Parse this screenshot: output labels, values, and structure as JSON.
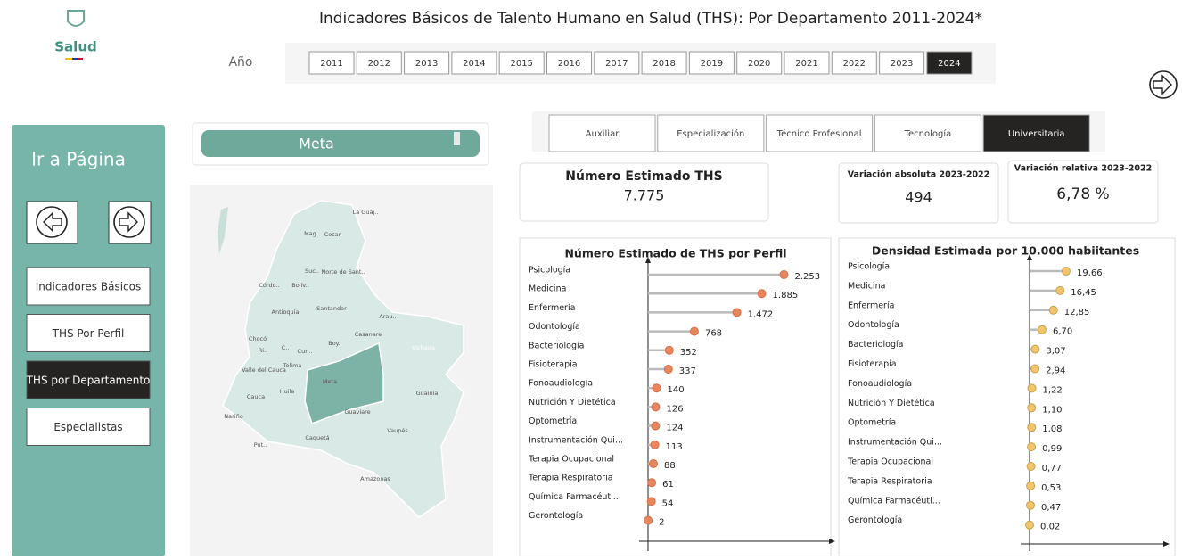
{
  "header": {
    "logo": "Salud",
    "title": "Indicadores Básicos de Talento Humano en Salud (THS): Por Departamento 2011-2024*",
    "year_label": "Año",
    "years": [
      "2011",
      "2012",
      "2013",
      "2014",
      "2015",
      "2016",
      "2017",
      "2018",
      "2019",
      "2020",
      "2021",
      "2022",
      "2023",
      "2024"
    ],
    "selected": "2024"
  },
  "nav": {
    "title": "Ir a Página",
    "pages": [
      "Indicadores Básicos",
      "THS Por Perfil",
      "THS por Departamento",
      "Especialistas"
    ],
    "current": "THS por Departamento"
  },
  "slicer": {
    "label": "Meta"
  },
  "map": {
    "regions": [
      "La Guaj..",
      "Mag..",
      "Cesar",
      "Norte de Sant..",
      "Suc..",
      "Córdo..",
      "Bolív..",
      "Antioquia",
      "Santander",
      "Arau..",
      "Chocó",
      "Ri..",
      "C..",
      "Cun..",
      "Boy..",
      "Casanare",
      "Vichada",
      "Valle del Cauca",
      "Tolima",
      "Meta",
      "Cauca",
      "Huila",
      "Guainía",
      "Guaviare",
      "Nariño",
      "Vaupés",
      "Caquetá",
      "Put..",
      "Amazonas"
    ]
  },
  "tabs": {
    "items": [
      "Auxiliar",
      "Especialización",
      "Técnico Profesional",
      "Tecnología",
      "Universitaria"
    ],
    "selected": "Universitaria"
  },
  "kpis": [
    {
      "title": "Número Estimado THS",
      "value": "7.775"
    },
    {
      "title": "Variación absoluta 2023-2022",
      "value": "494"
    },
    {
      "title": "Variación relativa 2023-2022",
      "value": "6,78 %"
    }
  ],
  "chart_data": [
    {
      "type": "lollipop",
      "title": "Número Estimado de THS por Perfil",
      "categories": [
        "Psicología",
        "Medicina",
        "Enfermería",
        "Odontología",
        "Bacteriología",
        "Fisioterapia",
        "Fonoaudiología",
        "Nutrición Y Dietética",
        "Optometría",
        "Instrumentación Qui...",
        "Terapia Ocupacional",
        "Terapia Respiratoria",
        "Química Farmacéuti...",
        "Gerontología"
      ],
      "values": [
        2253,
        1885,
        1472,
        768,
        352,
        337,
        140,
        126,
        124,
        113,
        88,
        61,
        54,
        2
      ],
      "value_labels": [
        "2.253",
        "1.885",
        "1.472",
        "768",
        "352",
        "337",
        "140",
        "126",
        "124",
        "113",
        "88",
        "61",
        "54",
        "2"
      ],
      "xlim": [
        0,
        3000
      ],
      "color": "#e8875f"
    },
    {
      "type": "lollipop",
      "title": "Densidad Estimada por 10.000 habiitantes",
      "categories": [
        "Psicología",
        "Medicina",
        "Enfermería",
        "Odontología",
        "Bacteriología",
        "Fisioterapia",
        "Fonoaudiología",
        "Nutrición Y Dietética",
        "Optometría",
        "Instrumentación Qui...",
        "Terapia Ocupacional",
        "Terapia Respiratoria",
        "Química Farmacéuti...",
        "Gerontología"
      ],
      "values": [
        19.66,
        16.45,
        12.85,
        6.7,
        3.07,
        2.94,
        1.22,
        1.1,
        1.08,
        0.99,
        0.77,
        0.53,
        0.47,
        0.02
      ],
      "value_labels": [
        "19,66",
        "16,45",
        "12,85",
        "6,70",
        "3,07",
        "2,94",
        "1,22",
        "1,10",
        "1,08",
        "0,99",
        "0,77",
        "0,53",
        "0,47",
        "0,02"
      ],
      "xlim": [
        0,
        72
      ],
      "color": "#f1c56c"
    }
  ]
}
